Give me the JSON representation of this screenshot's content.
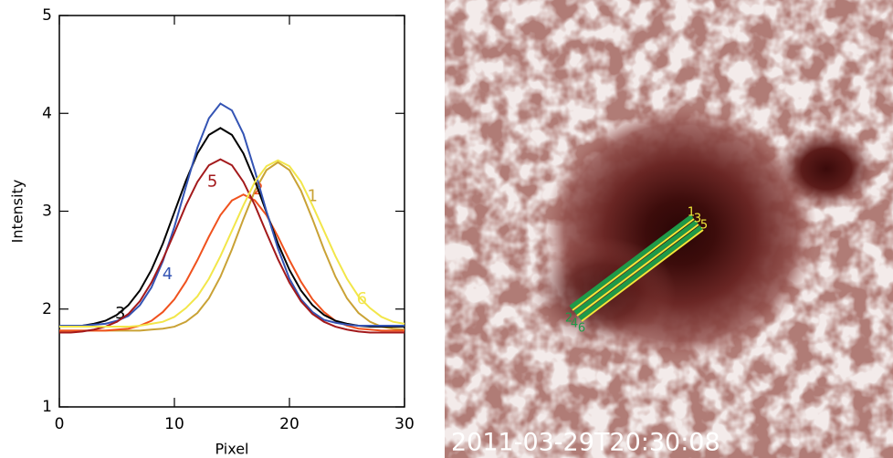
{
  "chart_data": {
    "type": "line",
    "xlabel": "Pixel",
    "ylabel": "Intensity",
    "xlim": [
      0,
      30
    ],
    "ylim": [
      1,
      5
    ],
    "xticks": [
      0,
      10,
      20,
      30
    ],
    "yticks": [
      1,
      2,
      3,
      4,
      5
    ],
    "x": [
      0,
      1,
      2,
      3,
      4,
      5,
      6,
      7,
      8,
      9,
      10,
      11,
      12,
      13,
      14,
      15,
      16,
      17,
      18,
      19,
      20,
      21,
      22,
      23,
      24,
      25,
      26,
      27,
      28,
      29,
      30
    ],
    "series": [
      {
        "name": "1",
        "color": "#c9a235",
        "values": [
          1.78,
          1.78,
          1.78,
          1.78,
          1.78,
          1.78,
          1.78,
          1.78,
          1.79,
          1.8,
          1.82,
          1.87,
          1.96,
          2.11,
          2.33,
          2.61,
          2.92,
          3.21,
          3.42,
          3.5,
          3.42,
          3.21,
          2.92,
          2.61,
          2.33,
          2.11,
          1.96,
          1.87,
          1.82,
          1.8,
          1.79
        ]
      },
      {
        "name": "2",
        "color": "#f0521e",
        "values": [
          1.78,
          1.78,
          1.78,
          1.78,
          1.78,
          1.79,
          1.8,
          1.83,
          1.88,
          1.97,
          2.1,
          2.28,
          2.5,
          2.74,
          2.96,
          3.11,
          3.17,
          3.11,
          2.96,
          2.74,
          2.5,
          2.28,
          2.1,
          1.97,
          1.88,
          1.83,
          1.8,
          1.79,
          1.78,
          1.78,
          1.78
        ]
      },
      {
        "name": "3",
        "color": "#000000",
        "values": [
          1.82,
          1.82,
          1.83,
          1.85,
          1.88,
          1.94,
          2.04,
          2.19,
          2.4,
          2.67,
          2.99,
          3.31,
          3.59,
          3.78,
          3.85,
          3.78,
          3.59,
          3.31,
          2.99,
          2.67,
          2.4,
          2.19,
          2.04,
          1.94,
          1.88,
          1.85,
          1.83,
          1.82,
          1.82,
          1.82,
          1.82
        ]
      },
      {
        "name": "4",
        "color": "#3454b4",
        "values": [
          1.83,
          1.83,
          1.83,
          1.84,
          1.85,
          1.88,
          1.93,
          2.04,
          2.22,
          2.49,
          2.84,
          3.25,
          3.65,
          3.95,
          4.1,
          4.03,
          3.79,
          3.41,
          3.0,
          2.62,
          2.31,
          2.1,
          1.97,
          1.89,
          1.86,
          1.84,
          1.83,
          1.83,
          1.83,
          1.83,
          1.83
        ]
      },
      {
        "name": "5",
        "color": "#a3191b",
        "values": [
          1.76,
          1.76,
          1.77,
          1.79,
          1.82,
          1.87,
          1.95,
          2.08,
          2.27,
          2.51,
          2.78,
          3.06,
          3.3,
          3.47,
          3.53,
          3.47,
          3.3,
          3.06,
          2.78,
          2.51,
          2.27,
          2.08,
          1.95,
          1.87,
          1.82,
          1.79,
          1.77,
          1.76,
          1.76,
          1.76,
          1.76
        ]
      },
      {
        "name": "6",
        "color": "#f2e64a",
        "values": [
          1.82,
          1.82,
          1.82,
          1.82,
          1.82,
          1.82,
          1.82,
          1.83,
          1.85,
          1.87,
          1.92,
          2.01,
          2.13,
          2.31,
          2.54,
          2.8,
          3.06,
          3.3,
          3.46,
          3.52,
          3.46,
          3.3,
          3.06,
          2.8,
          2.54,
          2.31,
          2.13,
          2.01,
          1.92,
          1.87,
          1.85
        ]
      }
    ]
  },
  "image": {
    "timestamp": "2011-03-29T20:30:08",
    "slit_labels": [
      "1",
      "2",
      "3",
      "4",
      "5",
      "6"
    ]
  }
}
